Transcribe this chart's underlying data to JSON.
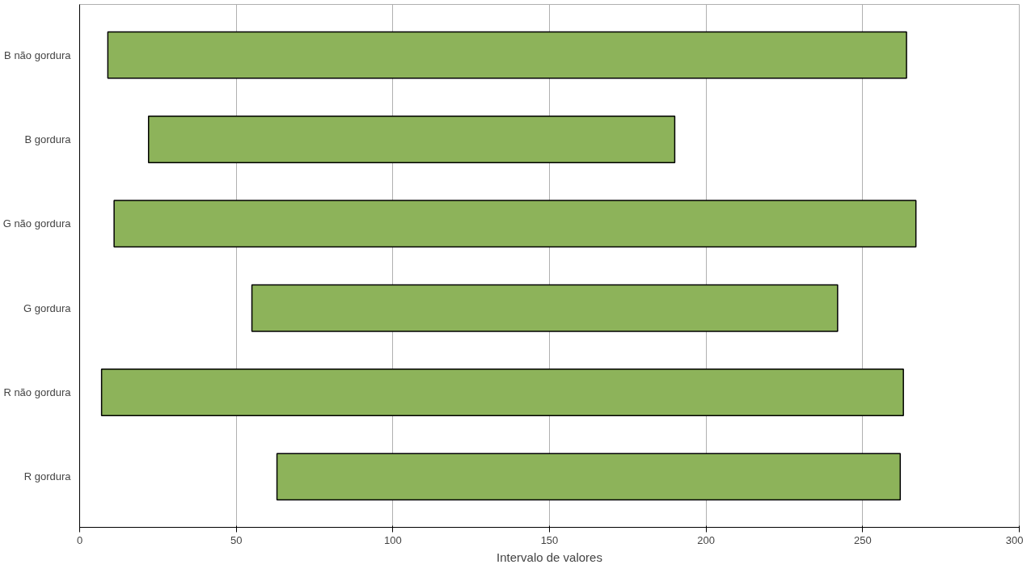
{
  "chart_data": {
    "type": "bar",
    "orientation": "horizontal",
    "categories": [
      "B não gordura",
      "B gordura",
      "G não gordura",
      "G gordura",
      "R não gordura",
      "R gordura"
    ],
    "base": [
      9,
      22,
      11,
      55,
      7,
      63
    ],
    "values": [
      255,
      168,
      256,
      187,
      256,
      199
    ],
    "color": "#8db35a",
    "xlim": [
      0,
      300
    ],
    "xticks": [
      0,
      50,
      100,
      150,
      200,
      250,
      300
    ],
    "xlabel": "Intervalo de valores",
    "grid": "x"
  }
}
